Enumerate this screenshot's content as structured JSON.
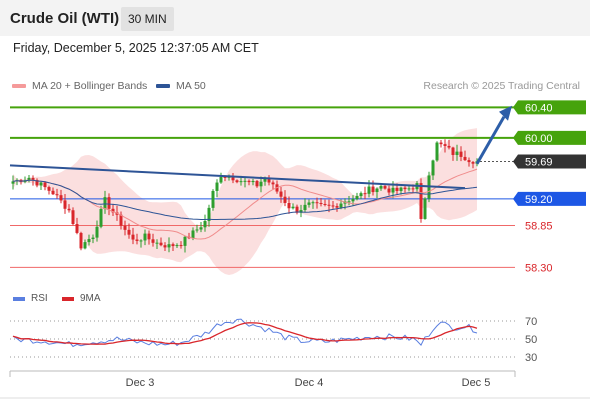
{
  "header": {
    "title": "Crude Oil (WTI)",
    "timeframe": "30 MIN",
    "timestamp": "Friday, December 5, 2025 12:37:05 AM CET"
  },
  "legend": {
    "ma20_label": "MA 20 + Bollinger Bands",
    "ma50_label": "MA 50",
    "research": "Research © 2025 Trading Central"
  },
  "rsi_legend": {
    "rsi_label": "RSI",
    "ma_label": "9MA"
  },
  "colors": {
    "up": "#2e9e2e",
    "down": "#d9262b",
    "ma20": "#f08c8c",
    "ma50": "#2d5496",
    "band_fill": "#f8c9c9",
    "resistance": "#46a30c",
    "support": "#1d57e5",
    "support2": "#f06868",
    "current": "#333333",
    "arrow": "#2d5ea8",
    "rsi": "#5a7fe0",
    "rsi_ma": "#d9262b"
  },
  "chart_data": [
    {
      "type": "candlestick",
      "title": "Crude Oil (WTI) 30 MIN",
      "x_ticks": [
        "Dec 3",
        "Dec 4",
        "Dec 5"
      ],
      "ylim": [
        58.2,
        60.55
      ],
      "levels": [
        {
          "name": "resistance-2",
          "value": 60.4,
          "label": "60.40",
          "style": "green-box"
        },
        {
          "name": "resistance-1",
          "value": 60.0,
          "label": "60.00",
          "style": "green-box"
        },
        {
          "name": "current-price",
          "value": 59.69,
          "label": "59.69",
          "style": "dark-box"
        },
        {
          "name": "pivot",
          "value": 59.2,
          "label": "59.20",
          "style": "blue-box"
        },
        {
          "name": "support-1",
          "value": 58.85,
          "label": "58.85",
          "style": "red-text"
        },
        {
          "name": "support-2",
          "value": 58.3,
          "label": "58.30",
          "style": "red-text"
        }
      ],
      "trendline": [
        [
          0,
          59.64
        ],
        [
          113,
          59.34
        ]
      ],
      "arrow": {
        "from": [
          116,
          59.66
        ],
        "to": [
          128,
          60.37
        ]
      },
      "anchors": [
        [
          0,
          59.43
        ],
        [
          4,
          59.48
        ],
        [
          7,
          59.38
        ],
        [
          10,
          59.28
        ],
        [
          14,
          59.05
        ],
        [
          17,
          58.58
        ],
        [
          20,
          58.72
        ],
        [
          23,
          59.18
        ],
        [
          26,
          58.95
        ],
        [
          30,
          58.65
        ],
        [
          33,
          58.7
        ],
        [
          36,
          58.62
        ],
        [
          39,
          58.58
        ],
        [
          42,
          58.62
        ],
        [
          45,
          58.75
        ],
        [
          48,
          58.9
        ],
        [
          50,
          59.28
        ],
        [
          52,
          59.52
        ],
        [
          55,
          59.48
        ],
        [
          58,
          59.42
        ],
        [
          61,
          59.38
        ],
        [
          63,
          59.48
        ],
        [
          66,
          59.3
        ],
        [
          69,
          59.1
        ],
        [
          71,
          59.05
        ],
        [
          74,
          59.12
        ],
        [
          77,
          59.1
        ],
        [
          80,
          59.1
        ],
        [
          83,
          59.18
        ],
        [
          86,
          59.22
        ],
        [
          89,
          59.32
        ],
        [
          92,
          59.36
        ],
        [
          95,
          59.3
        ],
        [
          98,
          59.32
        ],
        [
          101,
          59.38
        ],
        [
          102,
          58.9
        ],
        [
          104,
          59.55
        ],
        [
          106,
          59.92
        ],
        [
          108,
          59.88
        ],
        [
          110,
          59.8
        ],
        [
          112,
          59.78
        ],
        [
          114,
          59.72
        ],
        [
          116,
          59.69
        ]
      ],
      "series": [
        {
          "name": "MA 20 + Bollinger Bands"
        },
        {
          "name": "MA 50"
        }
      ]
    },
    {
      "type": "line",
      "title": "RSI",
      "y_ticks": [
        70,
        50,
        30
      ],
      "ylim": [
        20,
        80
      ],
      "anchors": [
        [
          0,
          50
        ],
        [
          8,
          48
        ],
        [
          14,
          44
        ],
        [
          20,
          47
        ],
        [
          26,
          50
        ],
        [
          32,
          46
        ],
        [
          38,
          44
        ],
        [
          42,
          46
        ],
        [
          48,
          56
        ],
        [
          52,
          68
        ],
        [
          56,
          72
        ],
        [
          60,
          66
        ],
        [
          64,
          60
        ],
        [
          68,
          52
        ],
        [
          72,
          48
        ],
        [
          78,
          47
        ],
        [
          84,
          50
        ],
        [
          90,
          53
        ],
        [
          96,
          52
        ],
        [
          100,
          50
        ],
        [
          102,
          44
        ],
        [
          104,
          56
        ],
        [
          106,
          68
        ],
        [
          108,
          66
        ],
        [
          110,
          63
        ],
        [
          113,
          64
        ],
        [
          116,
          60
        ]
      ],
      "series": [
        {
          "name": "RSI"
        },
        {
          "name": "9MA"
        }
      ]
    }
  ]
}
